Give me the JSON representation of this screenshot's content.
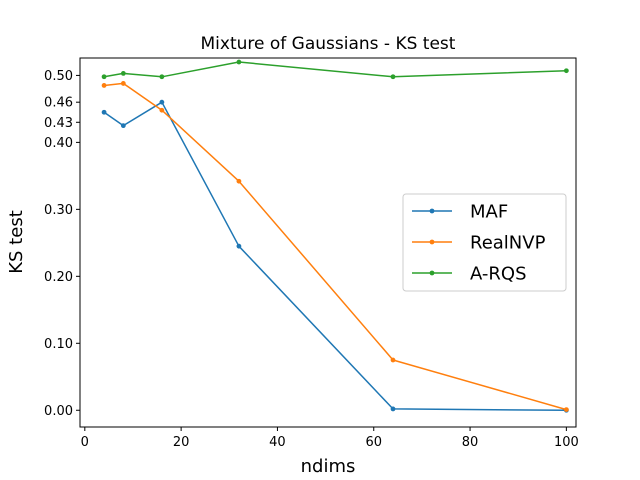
{
  "chart_data": {
    "type": "line",
    "title": "Mixture of Gaussians - KS test",
    "xlabel": "ndims",
    "ylabel": "KS test",
    "xlim": [
      -1,
      102
    ],
    "ylim": [
      -0.025,
      0.526
    ],
    "xticks": [
      0,
      20,
      40,
      60,
      80,
      100
    ],
    "xtick_labels": [
      "0",
      "20",
      "40",
      "60",
      "80",
      "100"
    ],
    "yticks": [
      0.0,
      0.1,
      0.2,
      0.3,
      0.4,
      0.43,
      0.46,
      0.5
    ],
    "ytick_labels": [
      "0.00",
      "0.10",
      "0.20",
      "0.30",
      "0.40",
      "0.43",
      "0.46",
      "0.50"
    ],
    "grid": false,
    "legend_position": "center-right",
    "series": [
      {
        "name": "MAF",
        "color": "#1f77b4",
        "x": [
          4,
          8,
          16,
          32,
          64,
          100
        ],
        "y": [
          0.445,
          0.425,
          0.46,
          0.245,
          0.002,
          0.0
        ]
      },
      {
        "name": "RealNVP",
        "color": "#ff7f0e",
        "x": [
          4,
          8,
          16,
          32,
          64,
          100
        ],
        "y": [
          0.485,
          0.488,
          0.448,
          0.342,
          0.075,
          0.001
        ]
      },
      {
        "name": "A-RQS",
        "color": "#2ca02c",
        "x": [
          4,
          8,
          16,
          32,
          64,
          100
        ],
        "y": [
          0.498,
          0.503,
          0.498,
          0.52,
          0.498,
          0.507
        ]
      }
    ]
  }
}
